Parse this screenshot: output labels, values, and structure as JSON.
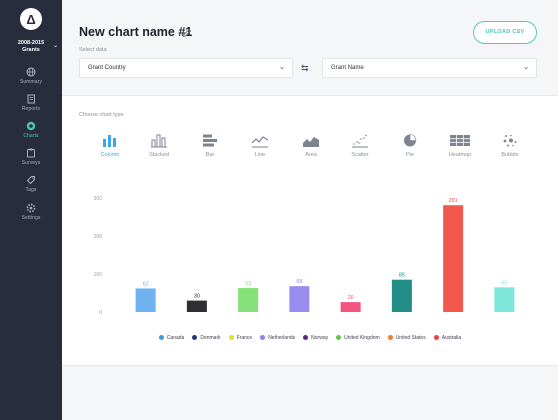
{
  "sidebar": {
    "org_line1": "2008-2015",
    "org_line2": "Grants",
    "items": [
      {
        "label": "Summary",
        "icon": "globe-icon",
        "active": false
      },
      {
        "label": "Reports",
        "icon": "document-icon",
        "active": false
      },
      {
        "label": "Charts",
        "icon": "chart-icon",
        "active": true
      },
      {
        "label": "Surveys",
        "icon": "clipboard-icon",
        "active": false
      },
      {
        "label": "Tags",
        "icon": "tag-icon",
        "active": false
      },
      {
        "label": "Settings",
        "icon": "gear-icon",
        "active": false
      }
    ]
  },
  "header": {
    "title": "New chart name #1",
    "upload_label": "UPLOAD CSV",
    "select_label": "Select data",
    "x_select": "Grant Country",
    "y_select": "Grant Name"
  },
  "chart_types": {
    "label": "Choose chart type",
    "items": [
      {
        "label": "Column",
        "icon": "column-chart-icon",
        "active": true
      },
      {
        "label": "Stacked",
        "icon": "stacked-chart-icon",
        "active": false
      },
      {
        "label": "Bar",
        "icon": "bar-chart-icon",
        "active": false
      },
      {
        "label": "Line",
        "icon": "line-chart-icon",
        "active": false
      },
      {
        "label": "Area",
        "icon": "area-chart-icon",
        "active": false
      },
      {
        "label": "Scatter",
        "icon": "scatter-chart-icon",
        "active": false
      },
      {
        "label": "Pie",
        "icon": "pie-chart-icon",
        "active": false
      },
      {
        "label": "Heatmap",
        "icon": "heatmap-icon",
        "active": false
      },
      {
        "label": "Bubble",
        "icon": "bubble-chart-icon",
        "active": false
      }
    ]
  },
  "colors": {
    "accent": "#4fc5b6",
    "active_blue": "#3aa7e8",
    "sidebar_bg": "#272d3d"
  },
  "chart_data": {
    "type": "bar",
    "ylim": [
      0,
      300
    ],
    "y_ticks": [
      0,
      100,
      200,
      300
    ],
    "grid": false,
    "legend_position": "bottom",
    "categories": [
      "Canada",
      "Denmark",
      "France",
      "Netherlands",
      "Norway",
      "United Kingdom",
      "United States",
      "Australia"
    ],
    "values": [
      62,
      30,
      63,
      68,
      26,
      85,
      281,
      65
    ],
    "colors": [
      "#6fb2ef",
      "#2e2e33",
      "#86e07a",
      "#9b8cf0",
      "#f2537f",
      "#218d87",
      "#f2584e",
      "#7fe6dc"
    ],
    "label_colors": [
      "#6fb2ef",
      "#2e2e33",
      "#86e07a",
      "#9b8cf0",
      "#f2537f",
      "#218d87",
      "#f2584e",
      "#7fe6dc"
    ],
    "legend": [
      {
        "name": "Canada",
        "color": "#3a9be0"
      },
      {
        "name": "Denmark",
        "color": "#283580"
      },
      {
        "name": "France",
        "color": "#d8e334"
      },
      {
        "name": "Netherlands",
        "color": "#8e7ef0"
      },
      {
        "name": "Norway",
        "color": "#5a2a8a"
      },
      {
        "name": "United Kingdom",
        "color": "#5ec44a"
      },
      {
        "name": "United States",
        "color": "#f47b2a"
      },
      {
        "name": "Australia",
        "color": "#ef3f4a"
      }
    ]
  }
}
